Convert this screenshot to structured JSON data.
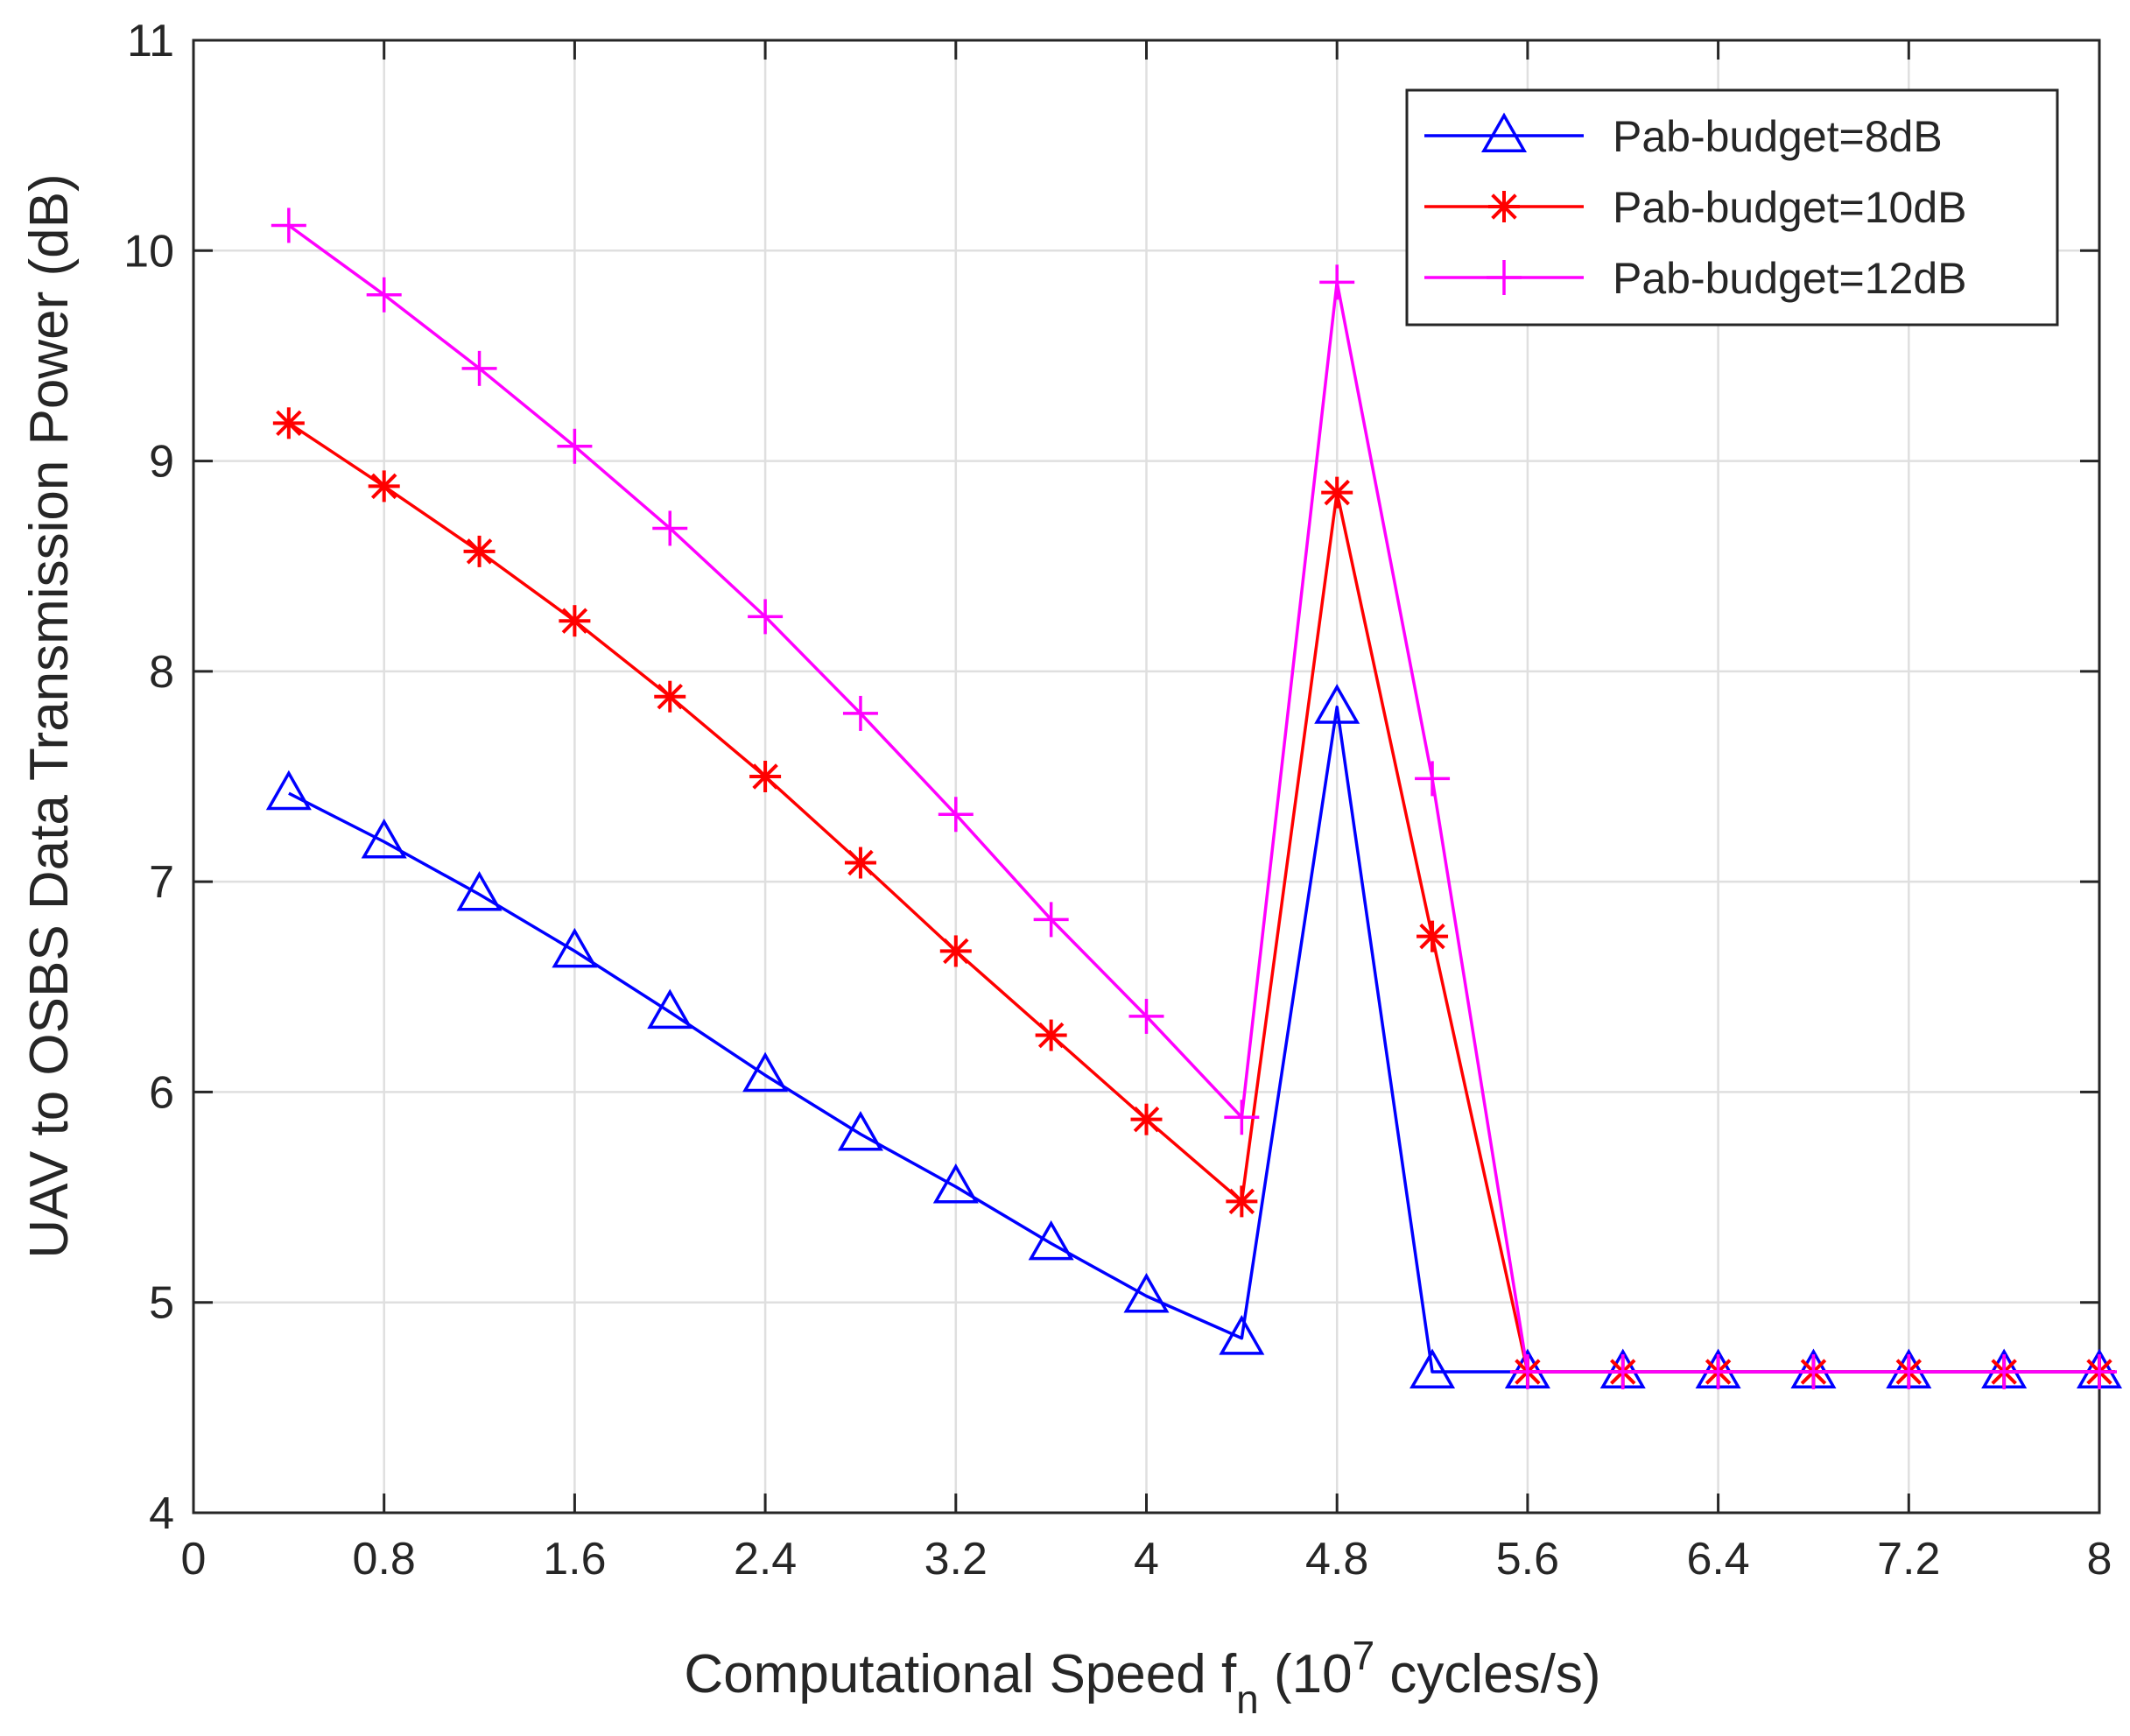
{
  "chart_data": {
    "type": "line",
    "title": "",
    "xlabel": {
      "main": "Computational Speed f",
      "sub": "n",
      "pre_sup": " (10",
      "sup": "7",
      "post_sup": " cycles/s)"
    },
    "ylabel": "UAV to OSBS Data Transmission Power (dB)",
    "xlim": [
      0,
      8
    ],
    "ylim": [
      4,
      11
    ],
    "xticks": [
      0,
      0.8,
      1.6,
      2.4,
      3.2,
      4,
      4.8,
      5.6,
      6.4,
      7.2,
      8
    ],
    "xtick_labels": [
      "0",
      "0.8",
      "1.6",
      "2.4",
      "3.2",
      "4",
      "4.8",
      "5.6",
      "6.4",
      "7.2",
      "8"
    ],
    "yticks": [
      4,
      5,
      6,
      7,
      8,
      9,
      10,
      11
    ],
    "ytick_labels": [
      "4",
      "5",
      "6",
      "7",
      "8",
      "9",
      "10",
      "11"
    ],
    "grid": true,
    "legend_position": "top-right",
    "x": [
      0.4,
      0.8,
      1.2,
      1.6,
      2.0,
      2.4,
      2.8,
      3.2,
      3.6,
      4.0,
      4.4,
      4.8,
      5.2,
      5.6,
      6.0,
      6.4,
      6.8,
      7.2,
      7.6,
      8.0
    ],
    "series": [
      {
        "name": "Pab-budget=8dB",
        "color": "#0000ff",
        "marker": "triangle",
        "values": [
          7.42,
          7.19,
          6.94,
          6.67,
          6.38,
          6.08,
          5.8,
          5.55,
          5.28,
          5.03,
          4.83,
          7.83,
          4.67,
          4.67,
          4.67,
          4.67,
          4.67,
          4.67,
          4.67,
          4.67
        ]
      },
      {
        "name": "Pab-budget=10dB",
        "color": "#ff0000",
        "marker": "asterisk",
        "values": [
          9.18,
          8.88,
          8.57,
          8.24,
          7.88,
          7.5,
          7.09,
          6.67,
          6.27,
          5.87,
          5.48,
          8.85,
          6.74,
          4.67,
          4.67,
          4.67,
          4.67,
          4.67,
          4.67,
          4.67
        ]
      },
      {
        "name": "Pab-budget=12dB",
        "color": "#ff00ff",
        "marker": "plus",
        "values": [
          10.12,
          9.79,
          9.44,
          9.07,
          8.68,
          8.26,
          7.8,
          7.32,
          6.82,
          6.36,
          5.88,
          9.85,
          7.49,
          4.67,
          4.67,
          4.67,
          4.67,
          4.67,
          4.67,
          4.67
        ]
      }
    ]
  }
}
